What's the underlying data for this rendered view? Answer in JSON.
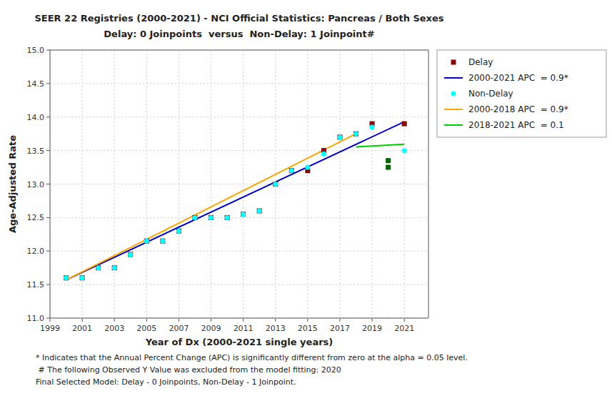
{
  "chart_data": {
    "type": "scatter",
    "title": "SEER 22 Registries (2000-2021) - NCI Official Statistics: Pancreas / Both Sexes",
    "subtitle": "Delay: 0 Joinpoints  versus  Non-Delay: 1 Joinpoint#",
    "x_label": "Year of Dx (2000-2021 single years)",
    "y_label": "Age-Adjusted Rate",
    "xlim": [
      1999,
      2022.5
    ],
    "ylim": [
      11.0,
      15.0
    ],
    "xticks": [
      1999,
      2001,
      2003,
      2005,
      2007,
      2009,
      2011,
      2013,
      2015,
      2017,
      2019,
      2021
    ],
    "yticks": [
      {
        "value": 11.0,
        "label": "11.0"
      },
      11.5,
      {
        "value": 12.0,
        "label": "12.0"
      },
      12.5,
      {
        "value": 13.0,
        "label": "13.0"
      },
      13.5,
      {
        "value": 14.0,
        "label": "14.0"
      },
      14.5,
      {
        "value": 15.0,
        "label": "15.0"
      }
    ],
    "grid": true,
    "legend": "right",
    "series": [
      {
        "name": "Delay",
        "type": "scatter",
        "marker": "square",
        "color": "#8B0000",
        "x": [
          2000,
          2001,
          2002,
          2003,
          2004,
          2005,
          2006,
          2007,
          2008,
          2009,
          2010,
          2011,
          2012,
          2013,
          2014,
          2015,
          2016,
          2017,
          2018,
          2019,
          2021
        ],
        "values": [
          11.6,
          11.6,
          11.75,
          11.75,
          11.95,
          12.15,
          12.15,
          12.3,
          12.5,
          12.5,
          12.5,
          12.55,
          12.6,
          13.0,
          13.2,
          13.2,
          13.5,
          13.7,
          13.75,
          13.9,
          13.9
        ]
      },
      {
        "name": "2000-2021 APC  = 0.9*",
        "type": "line",
        "line_style": "solid",
        "color": "#0000CD",
        "x": [
          2000,
          2021
        ],
        "values": [
          11.57,
          13.93
        ]
      },
      {
        "name": "Non-Delay",
        "type": "scatter",
        "marker": "circle",
        "color": "#00FFFF",
        "x": [
          2000,
          2001,
          2002,
          2003,
          2004,
          2005,
          2006,
          2007,
          2008,
          2009,
          2010,
          2011,
          2012,
          2013,
          2014,
          2015,
          2016,
          2017,
          2018,
          2019,
          2021
        ],
        "values": [
          11.6,
          11.6,
          11.75,
          11.75,
          11.95,
          12.15,
          12.15,
          12.3,
          12.5,
          12.5,
          12.5,
          12.55,
          12.6,
          13.0,
          13.2,
          13.25,
          13.45,
          13.7,
          13.75,
          13.85,
          13.5
        ]
      },
      {
        "name": "2000-2018 APC  = 0.9*",
        "type": "line",
        "line_style": "solid",
        "color": "#FFA500",
        "x": [
          2000,
          2018
        ],
        "values": [
          11.57,
          13.75
        ]
      },
      {
        "name": "2018-2021 APC  = 0.1",
        "type": "line",
        "line_style": "solid",
        "color": "#00CC00",
        "x": [
          2018,
          2021
        ],
        "values": [
          13.555,
          13.595
        ]
      },
      {
        "type": "scatter",
        "marker": "square",
        "color": "#006400",
        "x": [
          2020,
          2020
        ],
        "values": [
          13.35,
          13.25
        ]
      }
    ],
    "annotations": [
      "* Indicates that the Annual Percent Change (APC) is significantly different from zero at the alpha = 0.05 level.",
      " # The following Observed Y Value was excluded from the model fitting: 2020",
      "Final Selected Model: Delay - 0 Joinpoints, Non-Delay - 1 Joinpoint."
    ]
  }
}
